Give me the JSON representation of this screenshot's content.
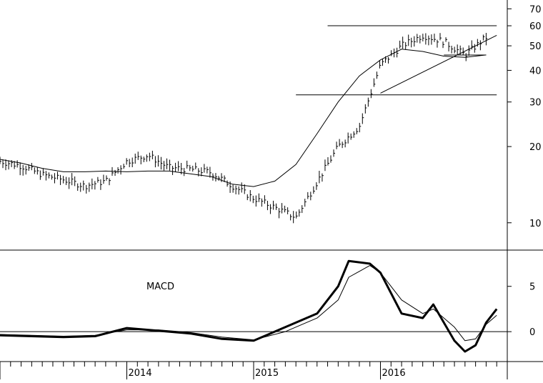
{
  "chart_data": [
    {
      "type": "ohlc",
      "panel": "price",
      "yscale": "log",
      "ylim": [
        7.8,
        72
      ],
      "yticks": [
        {
          "value": 70,
          "label": "70"
        },
        {
          "value": 60,
          "label": "60"
        },
        {
          "value": 50,
          "label": "50"
        },
        {
          "value": 40,
          "label": "40"
        },
        {
          "value": 30,
          "label": "30"
        },
        {
          "value": 20,
          "label": "20"
        },
        {
          "value": 10,
          "label": "10"
        }
      ],
      "xlim": [
        "2013-01",
        "2016-12"
      ],
      "x_labels": [
        "2014",
        "2015",
        "2016"
      ],
      "moving_average": [
        {
          "x": "2013-01",
          "y": 17.8
        },
        {
          "x": "2013-03",
          "y": 17.2
        },
        {
          "x": "2013-05",
          "y": 16.4
        },
        {
          "x": "2013-07",
          "y": 15.9
        },
        {
          "x": "2013-09",
          "y": 15.9
        },
        {
          "x": "2013-11",
          "y": 16.0
        },
        {
          "x": "2014-01",
          "y": 15.9
        },
        {
          "x": "2014-03",
          "y": 16.0
        },
        {
          "x": "2014-05",
          "y": 16.0
        },
        {
          "x": "2014-07",
          "y": 15.6
        },
        {
          "x": "2014-09",
          "y": 15.2
        },
        {
          "x": "2014-11",
          "y": 14.2
        },
        {
          "x": "2015-01",
          "y": 13.9
        },
        {
          "x": "2015-03",
          "y": 14.6
        },
        {
          "x": "2015-05",
          "y": 17.0
        },
        {
          "x": "2015-07",
          "y": 22.5
        },
        {
          "x": "2015-09",
          "y": 30.0
        },
        {
          "x": "2015-11",
          "y": 38.0
        },
        {
          "x": "2016-01",
          "y": 44.0
        },
        {
          "x": "2016-03",
          "y": 48.5
        },
        {
          "x": "2016-05",
          "y": 47.5
        },
        {
          "x": "2016-07",
          "y": 45.5
        },
        {
          "x": "2016-09",
          "y": 45.0
        },
        {
          "x": "2016-11",
          "y": 46.0
        }
      ],
      "price_path": [
        {
          "x": "2013-01",
          "y": 17.5
        },
        {
          "x": "2013-03",
          "y": 16.8
        },
        {
          "x": "2013-05",
          "y": 15.5
        },
        {
          "x": "2013-07",
          "y": 14.8
        },
        {
          "x": "2013-09",
          "y": 14.0
        },
        {
          "x": "2013-11",
          "y": 14.6
        },
        {
          "x": "2014-01",
          "y": 17.5
        },
        {
          "x": "2014-03",
          "y": 18.5
        },
        {
          "x": "2014-05",
          "y": 16.5
        },
        {
          "x": "2014-07",
          "y": 16.3
        },
        {
          "x": "2014-09",
          "y": 15.8
        },
        {
          "x": "2014-11",
          "y": 14.0
        },
        {
          "x": "2015-01",
          "y": 12.5
        },
        {
          "x": "2015-03",
          "y": 11.5
        },
        {
          "x": "2015-05",
          "y": 10.5
        },
        {
          "x": "2015-07",
          "y": 14.5
        },
        {
          "x": "2015-09",
          "y": 20.0
        },
        {
          "x": "2015-11",
          "y": 24.0
        },
        {
          "x": "2016-01",
          "y": 42.0
        },
        {
          "x": "2016-03",
          "y": 50.0
        },
        {
          "x": "2016-05",
          "y": 55.0
        },
        {
          "x": "2016-07",
          "y": 52.0
        },
        {
          "x": "2016-09",
          "y": 46.0
        },
        {
          "x": "2016-11",
          "y": 54.0
        }
      ],
      "lines": [
        {
          "name": "",
          "from": {
            "x": "2015-05",
            "y": 32
          },
          "to": {
            "x": "2016-12",
            "y": 32
          }
        },
        {
          "name": "",
          "from": {
            "x": "2015-08",
            "y": 60
          },
          "to": {
            "x": "2016-12",
            "y": 60
          }
        },
        {
          "name": "",
          "from": {
            "x": "2016-01",
            "y": 32.5
          },
          "to": {
            "x": "2016-12",
            "y": 55
          }
        },
        {
          "name": "",
          "from": {
            "x": "2016-07",
            "y": 46
          },
          "to": {
            "x": "2016-11",
            "y": 46
          }
        }
      ]
    },
    {
      "type": "line",
      "panel": "indicator",
      "title": "MACD",
      "ylim": [
        -3.3,
        9
      ],
      "yticks": [
        {
          "value": 5,
          "label": "5"
        },
        {
          "value": 0,
          "label": "0"
        }
      ],
      "xlim": [
        "2013-01",
        "2016-12"
      ],
      "series": [
        {
          "style": "bold",
          "points": [
            {
              "x": "2013-01",
              "y": -0.4
            },
            {
              "x": "2013-04",
              "y": -0.5
            },
            {
              "x": "2013-07",
              "y": -0.6
            },
            {
              "x": "2013-10",
              "y": -0.5
            },
            {
              "x": "2014-01",
              "y": 0.4
            },
            {
              "x": "2014-04",
              "y": 0.1
            },
            {
              "x": "2014-07",
              "y": -0.2
            },
            {
              "x": "2014-10",
              "y": -0.8
            },
            {
              "x": "2015-01",
              "y": -1.0
            },
            {
              "x": "2015-04",
              "y": 0.5
            },
            {
              "x": "2015-07",
              "y": 2.0
            },
            {
              "x": "2015-09",
              "y": 5.0
            },
            {
              "x": "2015-10",
              "y": 7.8
            },
            {
              "x": "2015-12",
              "y": 7.5
            },
            {
              "x": "2016-01",
              "y": 6.5
            },
            {
              "x": "2016-03",
              "y": 2.0
            },
            {
              "x": "2016-05",
              "y": 1.5
            },
            {
              "x": "2016-06",
              "y": 3.0
            },
            {
              "x": "2016-08",
              "y": -1.0
            },
            {
              "x": "2016-09",
              "y": -2.2
            },
            {
              "x": "2016-10",
              "y": -1.5
            },
            {
              "x": "2016-11",
              "y": 1.0
            },
            {
              "x": "2016-12",
              "y": 2.5
            }
          ]
        },
        {
          "style": "thin",
          "points": [
            {
              "x": "2013-01",
              "y": -0.3
            },
            {
              "x": "2013-04",
              "y": -0.4
            },
            {
              "x": "2013-07",
              "y": -0.5
            },
            {
              "x": "2013-10",
              "y": -0.4
            },
            {
              "x": "2014-01",
              "y": 0.2
            },
            {
              "x": "2014-04",
              "y": 0.2
            },
            {
              "x": "2014-07",
              "y": -0.1
            },
            {
              "x": "2014-10",
              "y": -0.6
            },
            {
              "x": "2015-01",
              "y": -0.9
            },
            {
              "x": "2015-04",
              "y": 0.0
            },
            {
              "x": "2015-07",
              "y": 1.5
            },
            {
              "x": "2015-09",
              "y": 3.5
            },
            {
              "x": "2015-10",
              "y": 6.0
            },
            {
              "x": "2015-12",
              "y": 7.3
            },
            {
              "x": "2016-01",
              "y": 6.5
            },
            {
              "x": "2016-03",
              "y": 3.5
            },
            {
              "x": "2016-05",
              "y": 2.0
            },
            {
              "x": "2016-06",
              "y": 2.5
            },
            {
              "x": "2016-08",
              "y": 0.5
            },
            {
              "x": "2016-09",
              "y": -1.0
            },
            {
              "x": "2016-10",
              "y": -0.8
            },
            {
              "x": "2016-11",
              "y": 0.8
            },
            {
              "x": "2016-12",
              "y": 1.8
            }
          ]
        }
      ],
      "zero_line": true
    }
  ]
}
